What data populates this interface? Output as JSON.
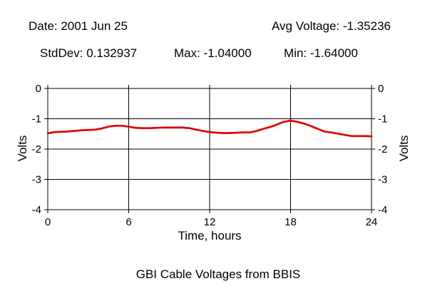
{
  "header": {
    "date": "Date: 2001 Jun 25",
    "avg": "Avg Voltage: -1.35236",
    "stddev": "StdDev: 0.132937",
    "max": "Max: -1.04000",
    "min": "Min: -1.64000"
  },
  "chart_data": {
    "type": "scatter",
    "title": "GBI Cable Voltages from BBIS",
    "xlabel": "Time, hours",
    "ylabel": "Volts",
    "ylabel_right": "Volts",
    "xlim": [
      0,
      24
    ],
    "ylim": [
      -4,
      0
    ],
    "xticks": [
      0,
      6,
      12,
      18,
      24
    ],
    "xtick_labels": [
      "0",
      "6",
      "12",
      "18",
      "24"
    ],
    "yticks": [
      0,
      -1,
      -2,
      -3,
      -4
    ],
    "ytick_labels": [
      "0",
      "-1",
      "-2",
      "-3",
      "-4"
    ],
    "grid": true,
    "colors": {
      "series": "#dd0000",
      "grid": "#000000"
    },
    "series": [
      {
        "values_x": [
          0.0,
          0.5,
          1.0,
          1.5,
          2.0,
          2.5,
          3.0,
          3.5,
          4.0,
          4.5,
          5.0,
          5.5,
          6.0,
          6.5,
          7.0,
          7.5,
          8.0,
          8.5,
          9.0,
          9.5,
          10.0,
          10.5,
          11.0,
          11.5,
          12.0,
          12.5,
          13.0,
          13.5,
          14.0,
          14.5,
          15.0,
          15.5,
          16.0,
          16.5,
          17.0,
          17.5,
          18.0,
          18.5,
          19.0,
          19.5,
          20.0,
          20.5,
          21.0,
          21.5,
          22.0,
          22.5,
          23.0,
          23.5,
          24.0
        ],
        "values_y": [
          -1.48,
          -1.44,
          -1.43,
          -1.42,
          -1.4,
          -1.38,
          -1.37,
          -1.36,
          -1.32,
          -1.26,
          -1.23,
          -1.23,
          -1.26,
          -1.3,
          -1.31,
          -1.31,
          -1.3,
          -1.29,
          -1.29,
          -1.29,
          -1.29,
          -1.31,
          -1.36,
          -1.4,
          -1.44,
          -1.46,
          -1.47,
          -1.47,
          -1.46,
          -1.45,
          -1.45,
          -1.4,
          -1.33,
          -1.27,
          -1.19,
          -1.1,
          -1.06,
          -1.1,
          -1.16,
          -1.24,
          -1.33,
          -1.42,
          -1.45,
          -1.49,
          -1.53,
          -1.57,
          -1.57,
          -1.57,
          -1.58
        ]
      }
    ]
  }
}
